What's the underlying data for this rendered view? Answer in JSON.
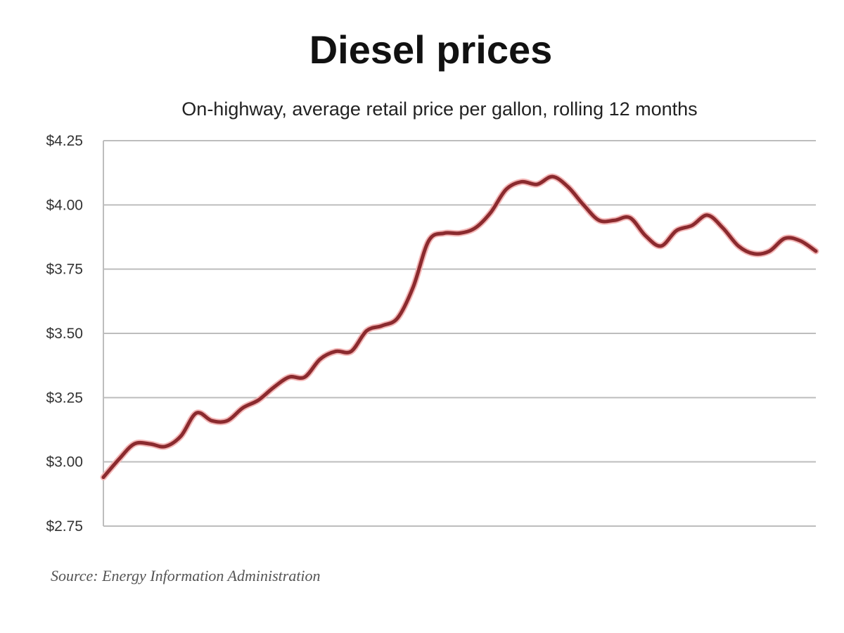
{
  "chart_data": {
    "type": "line",
    "title": "Diesel prices",
    "subtitle": "On-highway, average retail price per gallon, rolling 12 months",
    "xlabel": "",
    "ylabel": "",
    "ylim": [
      2.75,
      4.25
    ],
    "yticks": [
      4.25,
      4.0,
      3.75,
      3.5,
      3.25,
      3.0,
      2.75
    ],
    "ytick_labels": [
      "$4.25",
      "$4.00",
      "$3.75",
      "$3.50",
      "$3.25",
      "$3.00",
      "$2.75"
    ],
    "grid": true,
    "legend": "none",
    "line_color": "#8b2a2e",
    "series": [
      {
        "values": [
          2.94,
          3.01,
          3.07,
          3.07,
          3.06,
          3.1,
          3.19,
          3.16,
          3.16,
          3.21,
          3.24,
          3.29,
          3.33,
          3.33,
          3.4,
          3.43,
          3.43,
          3.51,
          3.53,
          3.56,
          3.68,
          3.86,
          3.89,
          3.89,
          3.91,
          3.97,
          4.06,
          4.09,
          4.08,
          4.11,
          4.07,
          4.0,
          3.94,
          3.94,
          3.95,
          3.88,
          3.84,
          3.9,
          3.92,
          3.96,
          3.91,
          3.84,
          3.81,
          3.82,
          3.87,
          3.86,
          3.82
        ]
      }
    ],
    "source": "Source: Energy Information Administration"
  }
}
